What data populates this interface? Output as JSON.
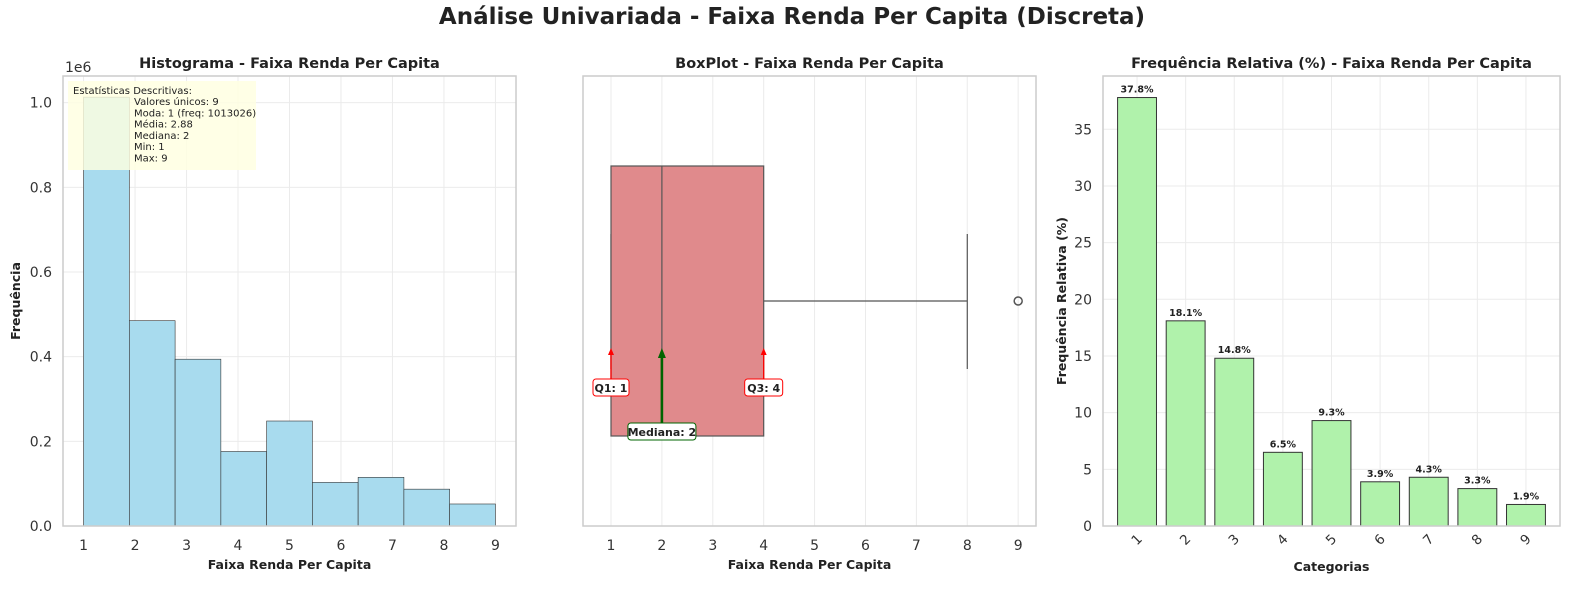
{
  "suptitle": "Análise Univariada - Faixa Renda Per Capita (Discreta)",
  "colors": {
    "hist_fill": "#a8dbee",
    "box_fill": "#e08a8c",
    "rel_fill": "#b0f2ab",
    "grid": "#ebebeb",
    "spine": "#cccccc",
    "q_marker": "#ff0000",
    "median_marker": "#006400",
    "stats_box": "#ffffe0"
  },
  "chart_data": [
    {
      "type": "bar",
      "title": "Histograma - Faixa Renda Per Capita",
      "xlabel": "Faixa Renda Per Capita",
      "ylabel": "Frequência",
      "y_scale_label": "1e6",
      "xlim": [
        0.6,
        9.4
      ],
      "ylim": [
        0,
        1.063
      ],
      "xticks": [
        "1",
        "2",
        "3",
        "4",
        "5",
        "6",
        "7",
        "8",
        "9"
      ],
      "yticks": [
        "0.0",
        "0.2",
        "0.4",
        "0.6",
        "0.8",
        "1.0"
      ],
      "bin_edges": [
        1.0,
        1.888889,
        2.777778,
        3.666667,
        4.555556,
        5.444444,
        6.333333,
        7.222222,
        8.111111,
        9.0
      ],
      "values": [
        1.013026,
        0.485,
        0.394,
        0.176,
        0.248,
        0.103,
        0.115,
        0.087,
        0.052
      ],
      "grid": true,
      "stats_box": {
        "title": "Estatísticas Descritivas:",
        "lines": [
          "Valores únicos: 9",
          "Moda: 1 (freq: 1013026)",
          "Média: 2.88",
          "Mediana: 2",
          "Min: 1",
          "Max: 9"
        ]
      }
    },
    {
      "type": "box",
      "title": "BoxPlot - Faixa Renda Per Capita",
      "xlabel": "Faixa Renda Per Capita",
      "xlim": [
        0.45,
        9.35
      ],
      "xticks": [
        "1",
        "2",
        "3",
        "4",
        "5",
        "6",
        "7",
        "8",
        "9"
      ],
      "whisker_low": 1,
      "q1": 1,
      "median": 2,
      "q3": 4,
      "whisker_high": 8,
      "outliers": [
        9
      ],
      "annotations": {
        "q1": "Q1: 1",
        "median": "Mediana: 2",
        "q3": "Q3: 4"
      },
      "grid": true
    },
    {
      "type": "bar",
      "title": "Frequência Relativa (%) - Faixa Renda Per Capita",
      "xlabel": "Categorias",
      "ylabel": "Frequência Relativa (%)",
      "ylim": [
        0,
        39.7
      ],
      "yticks": [
        "0",
        "5",
        "10",
        "15",
        "20",
        "25",
        "30",
        "35"
      ],
      "categories": [
        "1",
        "2",
        "3",
        "4",
        "5",
        "6",
        "7",
        "8",
        "9"
      ],
      "values": [
        37.8,
        18.1,
        14.8,
        6.5,
        9.3,
        3.9,
        4.3,
        3.3,
        1.9
      ],
      "labels": [
        "37.8%",
        "18.1%",
        "14.8%",
        "6.5%",
        "9.3%",
        "3.9%",
        "4.3%",
        "3.3%",
        "1.9%"
      ],
      "grid": true
    }
  ]
}
